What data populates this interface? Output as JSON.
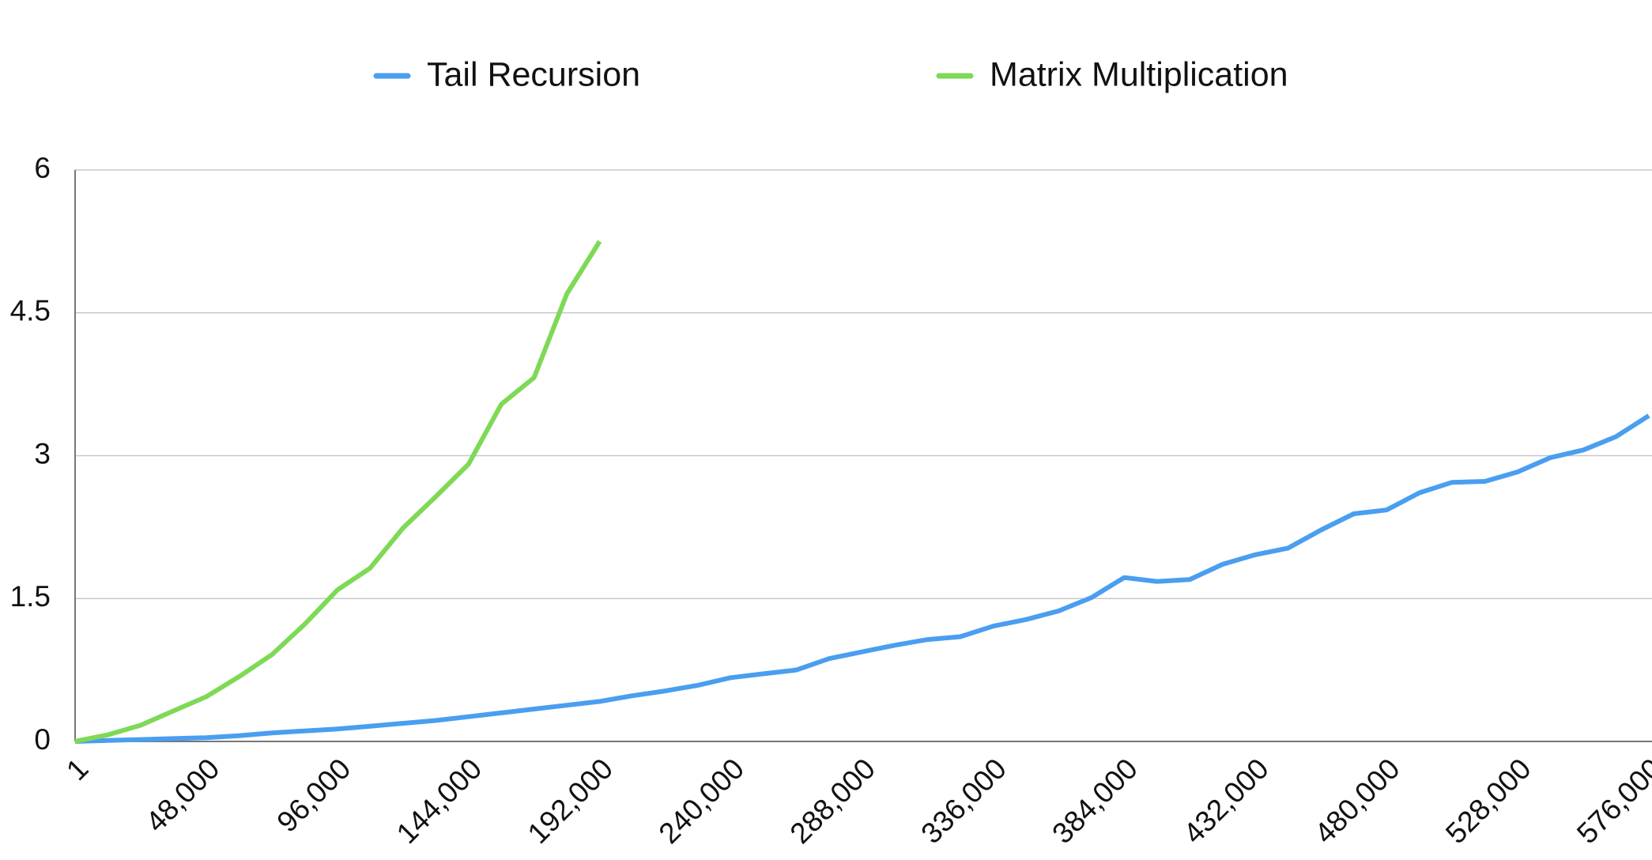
{
  "chart_data": {
    "type": "line",
    "x": [
      1,
      12000,
      24000,
      36000,
      48000,
      60000,
      72000,
      84000,
      96000,
      108000,
      120000,
      132000,
      144000,
      156000,
      168000,
      180000,
      192000,
      204000,
      216000,
      228000,
      240000,
      252000,
      264000,
      276000,
      288000,
      300000,
      312000,
      324000,
      336000,
      348000,
      360000,
      372000,
      384000,
      396000,
      408000,
      420000,
      432000,
      444000,
      456000,
      468000,
      480000,
      492000,
      504000,
      516000,
      528000,
      540000,
      552000,
      564000,
      576000
    ],
    "series": [
      {
        "name": "Tail Recursion",
        "color": "#4a9ef0",
        "values": [
          0,
          0.01,
          0.02,
          0.03,
          0.04,
          0.06,
          0.09,
          0.11,
          0.13,
          0.16,
          0.19,
          0.22,
          0.26,
          0.3,
          0.34,
          0.38,
          0.42,
          0.48,
          0.53,
          0.59,
          0.67,
          0.71,
          0.75,
          0.87,
          0.94,
          1.01,
          1.07,
          1.1,
          1.21,
          1.28,
          1.37,
          1.51,
          1.72,
          1.68,
          1.7,
          1.86,
          1.96,
          2.03,
          2.22,
          2.39,
          2.43,
          2.61,
          2.72,
          2.73,
          2.83,
          2.98,
          3.06,
          3.2,
          3.42
        ]
      },
      {
        "name": "Matrix Multiplication",
        "color": "#7ed957",
        "values": [
          0,
          0.07,
          0.17,
          0.32,
          0.47,
          0.68,
          0.91,
          1.23,
          1.59,
          1.82,
          2.24,
          2.57,
          2.91,
          3.54,
          3.82,
          4.7,
          5.25,
          null,
          null,
          null,
          null,
          null,
          null,
          null,
          null,
          null,
          null,
          null,
          null,
          null,
          null,
          null,
          null,
          null,
          null,
          null,
          null,
          null,
          null,
          null,
          null,
          null,
          null,
          null,
          null,
          null,
          null,
          null,
          null
        ]
      }
    ],
    "xlim": [
      1,
      576000
    ],
    "xticks": [
      1,
      {
        "value": 48000,
        "label": "48,000"
      },
      {
        "value": 96000,
        "label": "96,000"
      },
      {
        "value": 144000,
        "label": "144,000"
      },
      {
        "value": 192000,
        "label": "192,000"
      },
      {
        "value": 240000,
        "label": "240,000"
      },
      {
        "value": 288000,
        "label": "288,000"
      },
      {
        "value": 336000,
        "label": "336,000"
      },
      {
        "value": 384000,
        "label": "384,000"
      },
      {
        "value": 432000,
        "label": "432,000"
      },
      {
        "value": 480000,
        "label": "480,000"
      },
      {
        "value": 528000,
        "label": "528,000"
      },
      {
        "value": 576000,
        "label": "576,000"
      }
    ],
    "ylim": [
      0,
      6
    ],
    "yticks": [
      0,
      1.5,
      3,
      4.5,
      6
    ],
    "grid": true
  }
}
